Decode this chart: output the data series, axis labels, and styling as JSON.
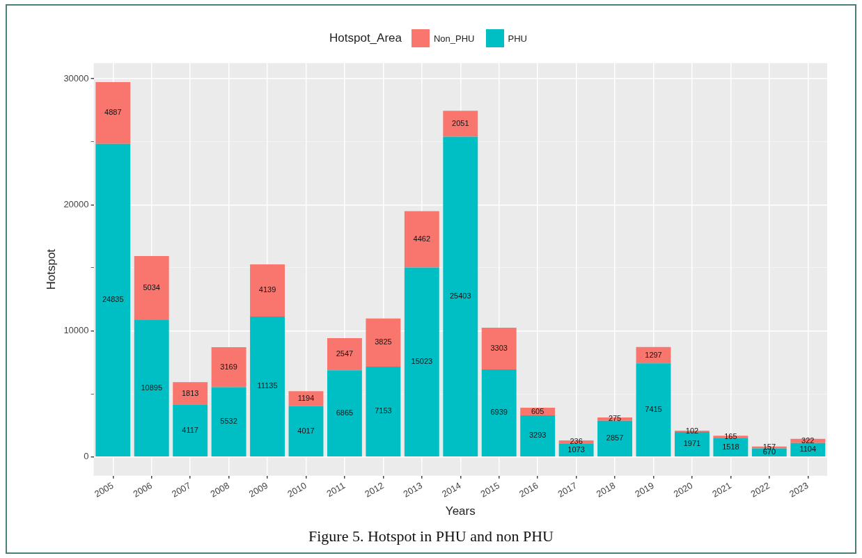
{
  "chart_data": {
    "type": "bar",
    "stacked": true,
    "xlabel": "Years",
    "ylabel": "Hotspot",
    "legend_title": "Hotspot_Area",
    "legend": "top",
    "categories": [
      "2005",
      "2006",
      "2007",
      "2008",
      "2009",
      "2010",
      "2011",
      "2012",
      "2013",
      "2014",
      "2015",
      "2016",
      "2017",
      "2018",
      "2019",
      "2020",
      "2021",
      "2022",
      "2023"
    ],
    "series": [
      {
        "name": "PHU",
        "color": "#00bfc4",
        "values": [
          24835,
          10895,
          4117,
          5532,
          11135,
          4017,
          6865,
          7153,
          15023,
          25403,
          6939,
          3293,
          1073,
          2857,
          7415,
          1971,
          1518,
          670,
          1104
        ]
      },
      {
        "name": "Non_PHU",
        "color": "#f8766d",
        "values": [
          4887,
          5034,
          1813,
          3169,
          4139,
          1194,
          2547,
          3825,
          4462,
          2051,
          3303,
          605,
          236,
          275,
          1297,
          102,
          165,
          157,
          322
        ]
      }
    ],
    "ylim": [
      -1490,
      31230
    ],
    "yticks": [
      0,
      {
        "value": 5000,
        "label": null
      },
      10000,
      {
        "value": 15000,
        "label": null
      },
      20000,
      {
        "value": 25000,
        "label": null
      },
      30000
    ],
    "grid": true,
    "data_labels": true,
    "annotations": [
      "Figure 5. Hotspot in PHU and non PHU"
    ]
  }
}
